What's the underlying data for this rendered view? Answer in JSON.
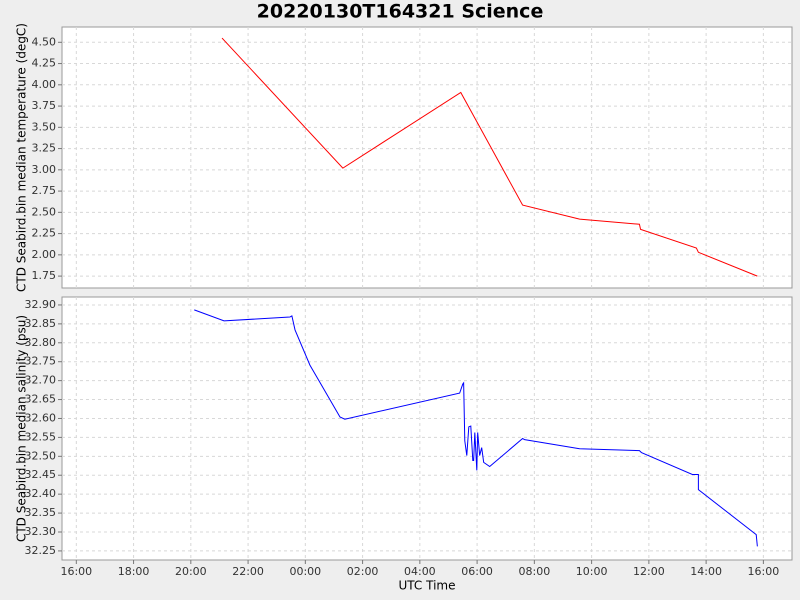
{
  "chart_data": [
    {
      "type": "line",
      "title": "20220130T164321 Science",
      "ylabel": "CTD Seabird.bin median temperature (degC)",
      "color": "#ff0000",
      "ylim": [
        1.61,
        4.68
      ],
      "yticks": [
        {
          "value": 1.75,
          "label": "1.75"
        },
        {
          "value": 2.0,
          "label": "2.00"
        },
        {
          "value": 2.25,
          "label": "2.25"
        },
        {
          "value": 2.5,
          "label": "2.50"
        },
        {
          "value": 2.75,
          "label": "2.75"
        },
        {
          "value": 3.0,
          "label": "3.00"
        },
        {
          "value": 3.25,
          "label": "3.25"
        },
        {
          "value": 3.5,
          "label": "3.50"
        },
        {
          "value": 3.75,
          "label": "3.75"
        },
        {
          "value": 4.0,
          "label": "4.00"
        },
        {
          "value": 4.25,
          "label": "4.25"
        },
        {
          "value": 4.5,
          "label": "4.50"
        }
      ],
      "x": [
        21.09,
        25.31,
        29.43,
        31.59,
        33.58,
        35.67,
        35.71,
        37.66,
        37.73,
        39.79
      ],
      "values": [
        4.55,
        3.02,
        3.91,
        2.585,
        2.42,
        2.36,
        2.3,
        2.08,
        2.03,
        1.75
      ],
      "grid": true
    },
    {
      "type": "line",
      "xlabel": "UTC Time",
      "ylabel": "CTD Seabird.bin median salinity (psu)",
      "color": "#0000ff",
      "xlim": [
        15.5,
        41.0
      ],
      "xticks": [
        {
          "value": 16,
          "label": "16:00"
        },
        {
          "value": 18,
          "label": "18:00"
        },
        {
          "value": 20,
          "label": "20:00"
        },
        {
          "value": 22,
          "label": "22:00"
        },
        {
          "value": 24,
          "label": "00:00"
        },
        {
          "value": 26,
          "label": "02:00"
        },
        {
          "value": 28,
          "label": "04:00"
        },
        {
          "value": 30,
          "label": "06:00"
        },
        {
          "value": 32,
          "label": "08:00"
        },
        {
          "value": 34,
          "label": "10:00"
        },
        {
          "value": 36,
          "label": "12:00"
        },
        {
          "value": 38,
          "label": "14:00"
        },
        {
          "value": 40,
          "label": "16:00"
        }
      ],
      "ylim": [
        32.226,
        32.921
      ],
      "yticks": [
        {
          "value": 32.25,
          "label": "32.25"
        },
        {
          "value": 32.3,
          "label": "32.30"
        },
        {
          "value": 32.35,
          "label": "32.35"
        },
        {
          "value": 32.4,
          "label": "32.40"
        },
        {
          "value": 32.45,
          "label": "32.45"
        },
        {
          "value": 32.5,
          "label": "32.50"
        },
        {
          "value": 32.55,
          "label": "32.55"
        },
        {
          "value": 32.6,
          "label": "32.60"
        },
        {
          "value": 32.65,
          "label": "32.65"
        },
        {
          "value": 32.7,
          "label": "32.70"
        },
        {
          "value": 32.75,
          "label": "32.75"
        },
        {
          "value": 32.8,
          "label": "32.80"
        },
        {
          "value": 32.85,
          "label": "32.85"
        },
        {
          "value": 32.9,
          "label": "32.90"
        }
      ],
      "x": [
        20.12,
        21.16,
        23.46,
        23.53,
        23.64,
        24.16,
        25.21,
        25.38,
        29.39,
        29.5,
        29.53,
        29.57,
        29.64,
        29.71,
        29.78,
        29.85,
        29.88,
        29.92,
        29.99,
        30.02,
        30.09,
        30.16,
        30.23,
        30.44,
        31.59,
        31.66,
        33.58,
        35.67,
        35.74,
        37.52,
        37.73,
        37.73,
        39.75,
        39.79
      ],
      "values": [
        32.887,
        32.858,
        32.868,
        32.871,
        32.834,
        32.741,
        32.604,
        32.598,
        32.667,
        32.691,
        32.694,
        32.541,
        32.502,
        32.578,
        32.58,
        32.489,
        32.489,
        32.563,
        32.463,
        32.563,
        32.502,
        32.523,
        32.484,
        32.473,
        32.547,
        32.544,
        32.52,
        32.515,
        32.51,
        32.452,
        32.452,
        32.412,
        32.293,
        32.262
      ],
      "grid": true
    }
  ]
}
